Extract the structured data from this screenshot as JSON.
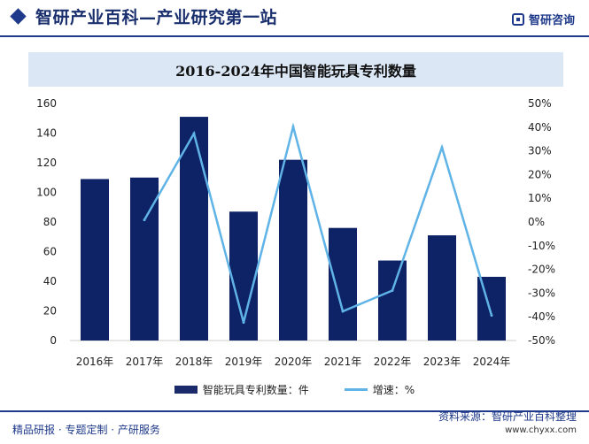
{
  "header": {
    "site_title": "智研产业百科—产业研究第一站",
    "brand_name": "智研咨询"
  },
  "footer": {
    "source": "资料来源：智研产业百科整理",
    "tagline": "精品研报 · 专题定制 · 产研服务",
    "url": "www.chyxx.com"
  },
  "colors": {
    "bar": "#0e2266",
    "line": "#5fb3e6",
    "brand": "#1f3a8a"
  },
  "chart_data": {
    "type": "bar+line",
    "title": "2016-2024年中国智能玩具专利数量",
    "categories": [
      "2016年",
      "2017年",
      "2018年",
      "2019年",
      "2020年",
      "2021年",
      "2022年",
      "2023年",
      "2024年"
    ],
    "series": [
      {
        "name": "智能玩具专利数量：件",
        "type": "bar",
        "axis": "left",
        "values": [
          109,
          110,
          151,
          87,
          122,
          76,
          54,
          71,
          43
        ]
      },
      {
        "name": "增速：%",
        "type": "line",
        "axis": "right",
        "values": [
          null,
          0.9,
          37.3,
          -42.4,
          40.2,
          -37.7,
          -28.9,
          31.5,
          -39.4
        ]
      }
    ],
    "y_left": {
      "min": 0,
      "max": 160,
      "ticks": [
        0,
        20,
        40,
        60,
        80,
        100,
        120,
        140,
        160
      ]
    },
    "y_right": {
      "min": -50,
      "max": 50,
      "ticks": [
        "-50%",
        "-40%",
        "-30%",
        "-20%",
        "-10%",
        "0%",
        "10%",
        "20%",
        "30%",
        "40%",
        "50%"
      ]
    },
    "grid": false,
    "legend_position": "bottom"
  }
}
